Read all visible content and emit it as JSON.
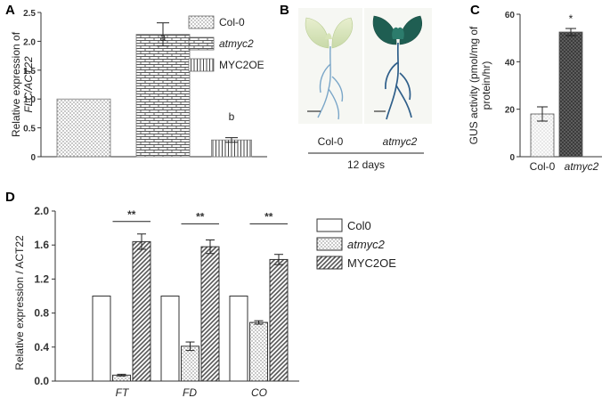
{
  "panels": {
    "a": {
      "letter": "A",
      "ylabel_line1": "Relative expression of",
      "ylabel_line2": "FLC/ACT22",
      "ylim": [
        0,
        2.5
      ],
      "yticks": [
        "0",
        "0.5",
        "1.0",
        "1.5",
        "2.0",
        "2.5"
      ],
      "legend": [
        "Col-0",
        "atmyc2",
        "MYC2OE"
      ],
      "annotations": [
        "a",
        "b"
      ]
    },
    "b": {
      "letter": "B",
      "label_left": "Col-0",
      "label_right": "atmyc2",
      "caption": "12 days"
    },
    "c": {
      "letter": "C",
      "ylabel_line1": "GUS activity (pmol/mg of",
      "ylabel_line2": "protein/hr)",
      "ylim": [
        0,
        60
      ],
      "yticks": [
        "0",
        "20",
        "40",
        "60"
      ],
      "categories": [
        "Col-0",
        "atmyc2"
      ],
      "annotation": "*"
    },
    "d": {
      "letter": "D",
      "ylabel": "Relative expression / ACT22",
      "ylim": [
        0,
        2.0
      ],
      "yticks": [
        "0.0",
        "0.4",
        "0.8",
        "1.2",
        "1.6",
        "2.0"
      ],
      "categories": [
        "FT",
        "FD",
        "CO"
      ],
      "legend": [
        "Col0",
        "atmyc2",
        "MYC2OE"
      ],
      "annotation": "**"
    }
  },
  "chart_data": [
    {
      "panel": "A",
      "type": "bar",
      "categories": [
        "Col-0",
        "atmyc2",
        "MYC2OE"
      ],
      "values": [
        1.0,
        2.12,
        0.29
      ],
      "errors": [
        0,
        0.2,
        0.04
      ],
      "ylabel": "Relative expression of FLC/ACT22",
      "ylim": [
        0,
        2.5
      ],
      "legend_position": "top-right",
      "grid": false
    },
    {
      "panel": "C",
      "type": "bar",
      "categories": [
        "Col-0",
        "atmyc2"
      ],
      "values": [
        18,
        52.5
      ],
      "errors": [
        3,
        1.5
      ],
      "ylabel": "GUS activity (pmol/mg of protein/hr)",
      "ylim": [
        0,
        60
      ],
      "grid": false
    },
    {
      "panel": "D",
      "type": "bar",
      "categories": [
        "FT",
        "FD",
        "CO"
      ],
      "series": [
        {
          "name": "Col0",
          "values": [
            1.0,
            1.0,
            1.0
          ],
          "errors": [
            0,
            0,
            0
          ]
        },
        {
          "name": "atmyc2",
          "values": [
            0.07,
            0.41,
            0.69
          ],
          "errors": [
            0.01,
            0.05,
            0.02
          ]
        },
        {
          "name": "MYC2OE",
          "values": [
            1.64,
            1.58,
            1.43
          ],
          "errors": [
            0.09,
            0.08,
            0.06
          ]
        }
      ],
      "ylabel": "Relative expression / ACT22",
      "ylim": [
        0,
        2.0
      ],
      "legend_position": "right",
      "grid": false
    }
  ]
}
